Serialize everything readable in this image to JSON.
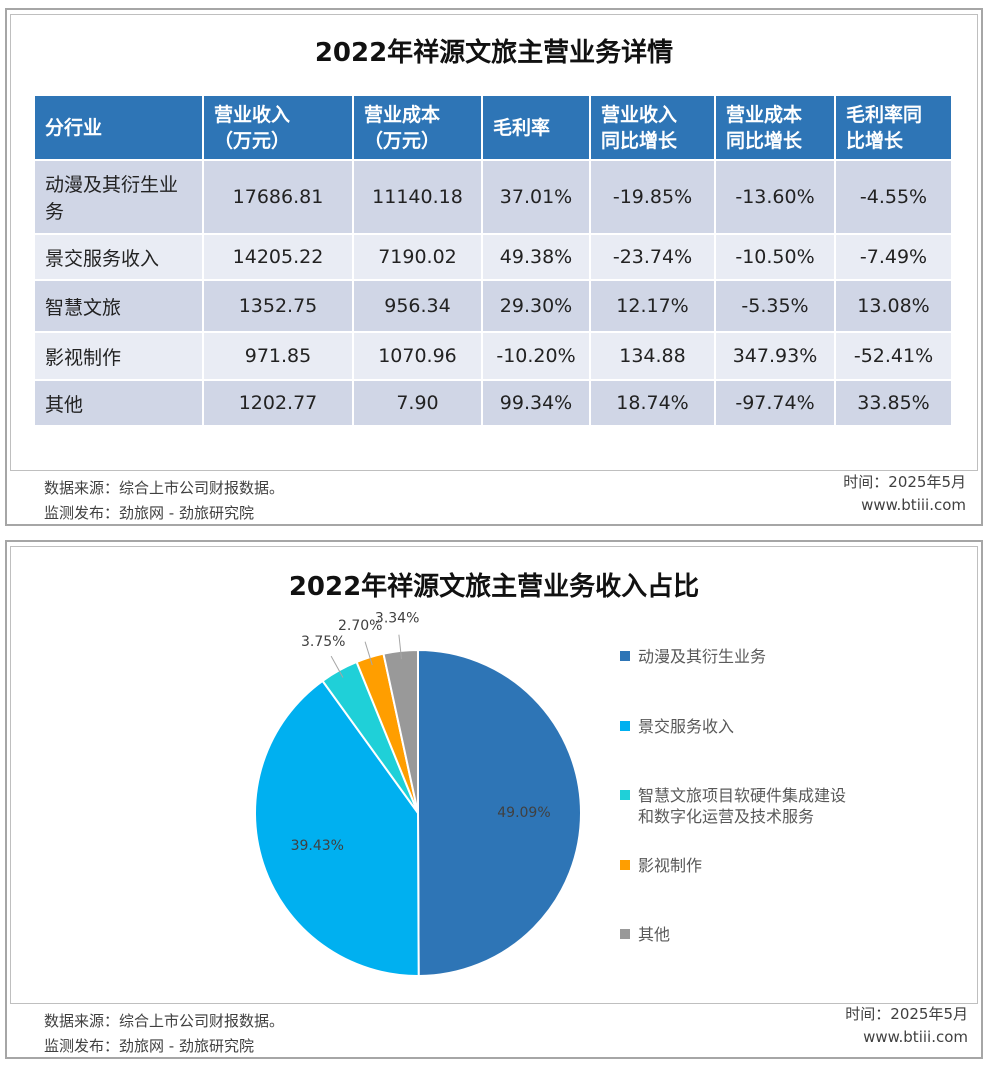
{
  "table_panel": {
    "title": "2022年祥源文旅主营业务详情",
    "header": [
      "分行业",
      "营业收入\n（万元）",
      "营业成本\n（万元）",
      "毛利率",
      "营业收入\n同比增长",
      "营业成本\n同比增长",
      "毛利率同\n比增长"
    ],
    "rows": [
      [
        "动漫及其衍生业务",
        "17686.81",
        "11140.18",
        "37.01%",
        "-19.85%",
        "-13.60%",
        "-4.55%"
      ],
      [
        "景交服务收入",
        "14205.22",
        "7190.02",
        "49.38%",
        "-23.74%",
        "-10.50%",
        "-7.49%"
      ],
      [
        "智慧文旅",
        "1352.75",
        "956.34",
        "29.30%",
        "12.17%",
        "-5.35%",
        "13.08%"
      ],
      [
        "影视制作",
        "971.85",
        "1070.96",
        "-10.20%",
        "134.88",
        "347.93%",
        "-52.41%"
      ],
      [
        "其他",
        "1202.77",
        "7.90",
        "99.34%",
        "18.74%",
        "-97.74%",
        "33.85%"
      ]
    ],
    "source": "数据来源：综合上市公司财报数据。",
    "publisher": "监测发布：劲旅网 - 劲旅研究院",
    "time": "时间：2025年5月",
    "site": "www.btiii.com"
  },
  "chart_data": {
    "type": "pie",
    "title": "2022年祥源文旅主营业务收入占比",
    "categories": [
      "动漫及其衍生业务",
      "景交服务收入",
      "智慧文旅项目软硬件集成建设和数字化运营及技术服务",
      "影视制作",
      "其他"
    ],
    "values": [
      49.09,
      39.43,
      3.75,
      2.7,
      3.34
    ],
    "value_labels": [
      "49.09%",
      "39.43%",
      "3.75%",
      "2.70%",
      "3.34%"
    ],
    "colors": [
      "#2e75b6",
      "#00b0f0",
      "#1fd0d8",
      "#ff9e00",
      "#999999"
    ]
  },
  "chart_footer": {
    "source": "数据来源：综合上市公司财报数据。",
    "publisher": "监测发布：劲旅网 - 劲旅研究院",
    "time": "时间：2025年5月",
    "site": "www.btiii.com"
  }
}
